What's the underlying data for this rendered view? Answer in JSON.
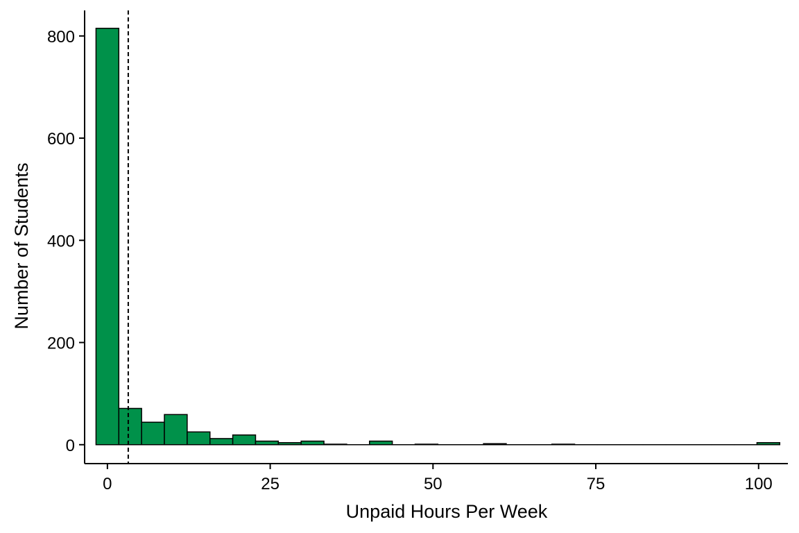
{
  "chart_data": {
    "type": "bar",
    "subtype": "histogram",
    "xlabel": "Unpaid Hours Per Week",
    "ylabel": "Number of Students",
    "xlim": [
      -3.5,
      104.5
    ],
    "ylim": [
      -37,
      850
    ],
    "x_ticks": [
      0,
      25,
      50,
      75,
      100
    ],
    "y_ticks": [
      0,
      200,
      400,
      600,
      800
    ],
    "bin_width": 3.5,
    "bin_start": -1.75,
    "bins": [
      {
        "x0": -1.75,
        "x1": 1.75,
        "count": 815
      },
      {
        "x0": 1.75,
        "x1": 5.25,
        "count": 71
      },
      {
        "x0": 5.25,
        "x1": 8.75,
        "count": 44
      },
      {
        "x0": 8.75,
        "x1": 12.25,
        "count": 59
      },
      {
        "x0": 12.25,
        "x1": 15.75,
        "count": 25
      },
      {
        "x0": 15.75,
        "x1": 19.25,
        "count": 12
      },
      {
        "x0": 19.25,
        "x1": 22.75,
        "count": 19
      },
      {
        "x0": 22.75,
        "x1": 26.25,
        "count": 7
      },
      {
        "x0": 26.25,
        "x1": 29.75,
        "count": 4
      },
      {
        "x0": 29.75,
        "x1": 33.25,
        "count": 7
      },
      {
        "x0": 33.25,
        "x1": 36.75,
        "count": 1
      },
      {
        "x0": 36.75,
        "x1": 40.25,
        "count": 0
      },
      {
        "x0": 40.25,
        "x1": 43.75,
        "count": 7
      },
      {
        "x0": 43.75,
        "x1": 47.25,
        "count": 0
      },
      {
        "x0": 47.25,
        "x1": 50.75,
        "count": 1
      },
      {
        "x0": 50.75,
        "x1": 54.25,
        "count": 0
      },
      {
        "x0": 54.25,
        "x1": 57.75,
        "count": 0
      },
      {
        "x0": 57.75,
        "x1": 61.25,
        "count": 2
      },
      {
        "x0": 61.25,
        "x1": 64.75,
        "count": 0
      },
      {
        "x0": 64.75,
        "x1": 68.25,
        "count": 0
      },
      {
        "x0": 68.25,
        "x1": 71.75,
        "count": 1
      },
      {
        "x0": 71.75,
        "x1": 75.25,
        "count": 0
      },
      {
        "x0": 75.25,
        "x1": 78.75,
        "count": 0
      },
      {
        "x0": 78.75,
        "x1": 82.25,
        "count": 0
      },
      {
        "x0": 82.25,
        "x1": 85.75,
        "count": 0
      },
      {
        "x0": 85.75,
        "x1": 89.25,
        "count": 0
      },
      {
        "x0": 89.25,
        "x1": 92.75,
        "count": 0
      },
      {
        "x0": 92.75,
        "x1": 96.25,
        "count": 0
      },
      {
        "x0": 96.25,
        "x1": 99.75,
        "count": 0
      },
      {
        "x0": 99.75,
        "x1": 103.25,
        "count": 4
      }
    ],
    "reference_line": {
      "x": 3.2,
      "style": "dashed"
    },
    "bar_fill": "#00914a",
    "bar_stroke": "#000000",
    "grid": false,
    "legend": "none"
  }
}
